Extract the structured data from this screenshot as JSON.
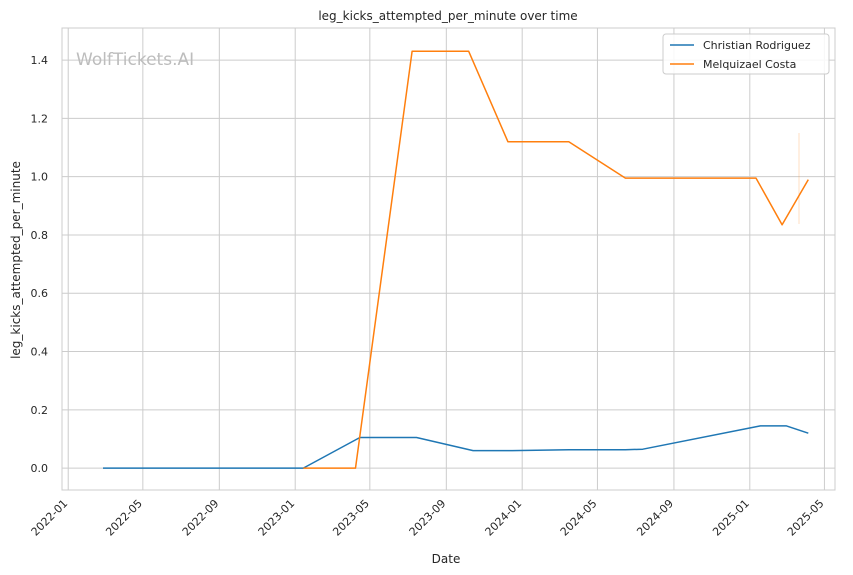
{
  "chart_data": {
    "type": "line",
    "title": "leg_kicks_attempted_per_minute over time",
    "xlabel": "Date",
    "ylabel": "leg_kicks_attempted_per_minute",
    "watermark": "WolfTickets.AI",
    "x_ticks": [
      "2022-01",
      "2022-05",
      "2022-09",
      "2023-01",
      "2023-05",
      "2023-09",
      "2024-01",
      "2024-05",
      "2024-09",
      "2025-01",
      "2025-05"
    ],
    "y_ticks": [
      "0.0",
      "0.2",
      "0.4",
      "0.6",
      "0.8",
      "1.0",
      "1.2",
      "1.4"
    ],
    "xlim": [
      "2021-12-22",
      "2025-05-18"
    ],
    "ylim": [
      -0.075,
      1.51
    ],
    "grid": true,
    "legend_position": "top-right",
    "series": [
      {
        "name": "Christian Rodriguez",
        "color": "#1f77b4",
        "points": [
          [
            "2022-02-26",
            0.0
          ],
          [
            "2023-01-14",
            0.0
          ],
          [
            "2023-04-15",
            0.105
          ],
          [
            "2023-07-15",
            0.105
          ],
          [
            "2023-10-14",
            0.06
          ],
          [
            "2023-12-16",
            0.06
          ],
          [
            "2024-03-16",
            0.063
          ],
          [
            "2024-06-15",
            0.063
          ],
          [
            "2024-07-13",
            0.065
          ],
          [
            "2025-01-18",
            0.145
          ],
          [
            "2025-03-01",
            0.145
          ],
          [
            "2025-04-05",
            0.12
          ]
        ]
      },
      {
        "name": "Melquizael Costa",
        "color": "#ff7f0e",
        "points": [
          [
            "2023-01-14",
            0.0
          ],
          [
            "2023-04-08",
            0.0
          ],
          [
            "2023-07-08",
            1.43
          ],
          [
            "2023-10-07",
            1.43
          ],
          [
            "2023-12-09",
            1.12
          ],
          [
            "2024-03-16",
            1.12
          ],
          [
            "2024-06-15",
            0.995
          ],
          [
            "2025-01-11",
            0.995
          ],
          [
            "2025-02-22",
            0.835
          ],
          [
            "2025-04-05",
            0.99
          ]
        ]
      }
    ]
  }
}
